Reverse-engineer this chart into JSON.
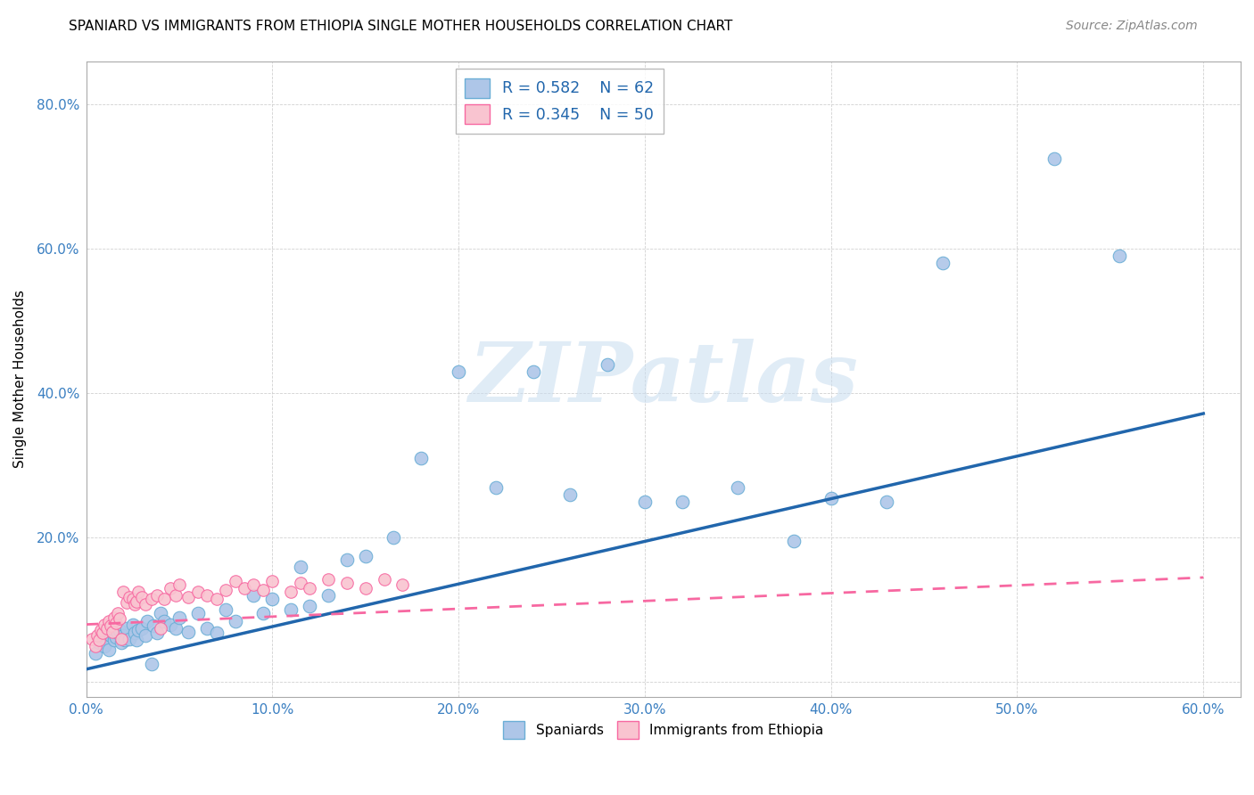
{
  "title": "SPANIARD VS IMMIGRANTS FROM ETHIOPIA SINGLE MOTHER HOUSEHOLDS CORRELATION CHART",
  "source": "Source: ZipAtlas.com",
  "ylabel": "Single Mother Households",
  "xlim": [
    0.0,
    0.62
  ],
  "ylim": [
    -0.02,
    0.86
  ],
  "xticks": [
    0.0,
    0.1,
    0.2,
    0.3,
    0.4,
    0.5,
    0.6
  ],
  "yticks": [
    0.0,
    0.2,
    0.4,
    0.6,
    0.8
  ],
  "blue_scatter_x": [
    0.005,
    0.007,
    0.008,
    0.01,
    0.012,
    0.013,
    0.014,
    0.015,
    0.016,
    0.017,
    0.018,
    0.019,
    0.02,
    0.021,
    0.022,
    0.023,
    0.025,
    0.026,
    0.027,
    0.028,
    0.03,
    0.032,
    0.033,
    0.035,
    0.036,
    0.038,
    0.04,
    0.042,
    0.045,
    0.048,
    0.05,
    0.055,
    0.06,
    0.065,
    0.07,
    0.075,
    0.08,
    0.09,
    0.095,
    0.1,
    0.11,
    0.115,
    0.12,
    0.13,
    0.14,
    0.15,
    0.165,
    0.18,
    0.2,
    0.22,
    0.24,
    0.26,
    0.28,
    0.3,
    0.32,
    0.35,
    0.38,
    0.4,
    0.43,
    0.46,
    0.52,
    0.555
  ],
  "blue_scatter_y": [
    0.04,
    0.055,
    0.06,
    0.05,
    0.045,
    0.065,
    0.07,
    0.058,
    0.062,
    0.068,
    0.072,
    0.055,
    0.065,
    0.058,
    0.075,
    0.06,
    0.08,
    0.068,
    0.058,
    0.072,
    0.075,
    0.065,
    0.085,
    0.025,
    0.078,
    0.068,
    0.095,
    0.085,
    0.08,
    0.075,
    0.09,
    0.07,
    0.095,
    0.075,
    0.068,
    0.1,
    0.085,
    0.12,
    0.095,
    0.115,
    0.1,
    0.16,
    0.105,
    0.12,
    0.17,
    0.175,
    0.2,
    0.31,
    0.43,
    0.27,
    0.43,
    0.26,
    0.44,
    0.25,
    0.25,
    0.27,
    0.195,
    0.255,
    0.25,
    0.58,
    0.725,
    0.59
  ],
  "pink_scatter_x": [
    0.003,
    0.005,
    0.006,
    0.007,
    0.008,
    0.009,
    0.01,
    0.011,
    0.012,
    0.013,
    0.014,
    0.015,
    0.016,
    0.017,
    0.018,
    0.019,
    0.02,
    0.022,
    0.023,
    0.025,
    0.026,
    0.027,
    0.028,
    0.03,
    0.032,
    0.035,
    0.038,
    0.04,
    0.042,
    0.045,
    0.048,
    0.05,
    0.055,
    0.06,
    0.065,
    0.07,
    0.075,
    0.08,
    0.085,
    0.09,
    0.095,
    0.1,
    0.11,
    0.115,
    0.12,
    0.13,
    0.14,
    0.15,
    0.16,
    0.17
  ],
  "pink_scatter_y": [
    0.06,
    0.05,
    0.065,
    0.058,
    0.072,
    0.068,
    0.08,
    0.075,
    0.085,
    0.078,
    0.07,
    0.09,
    0.082,
    0.095,
    0.088,
    0.06,
    0.125,
    0.11,
    0.118,
    0.115,
    0.108,
    0.112,
    0.125,
    0.118,
    0.108,
    0.115,
    0.12,
    0.075,
    0.115,
    0.13,
    0.12,
    0.135,
    0.118,
    0.125,
    0.12,
    0.115,
    0.128,
    0.14,
    0.13,
    0.135,
    0.128,
    0.14,
    0.125,
    0.138,
    0.13,
    0.142,
    0.138,
    0.13,
    0.142,
    0.135
  ],
  "blue_line_x": [
    0.0,
    0.6
  ],
  "blue_line_y": [
    0.018,
    0.372
  ],
  "pink_line_x": [
    0.0,
    0.6
  ],
  "pink_line_y": [
    0.08,
    0.145
  ],
  "blue_fill_color": "#aec6e8",
  "blue_edge_color": "#6baed6",
  "pink_fill_color": "#f9c4d0",
  "pink_edge_color": "#f768a1",
  "blue_line_color": "#2166ac",
  "pink_line_color": "#f768a1",
  "watermark_text": "ZIPatlas",
  "watermark_color": "#c8ddf0",
  "grid_color": "#cccccc",
  "tick_color": "#3a7fc1",
  "title_fontsize": 11,
  "source_text": "Source: ZipAtlas.com"
}
